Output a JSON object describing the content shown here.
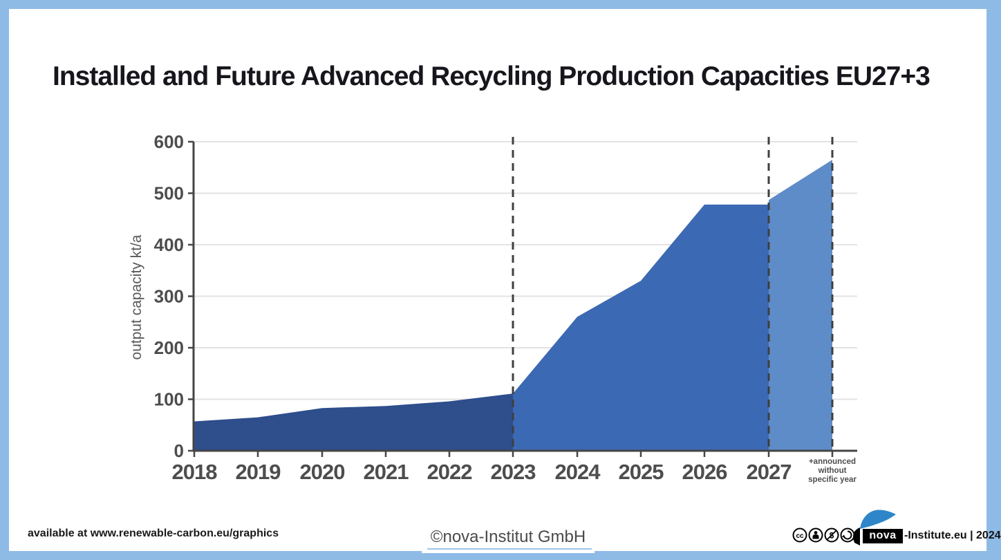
{
  "title": "Installed and Future Advanced Recycling Production Capacities EU27+3",
  "chart_data": {
    "type": "area",
    "title": "Installed and Future Advanced Recycling Production Capacities EU27+3",
    "xlabel": "",
    "ylabel": "output capacity kt/a",
    "ylim": [
      0,
      600
    ],
    "yticks": [
      0,
      100,
      200,
      300,
      400,
      500,
      600
    ],
    "grid": true,
    "legend": false,
    "categories": [
      "2018",
      "2019",
      "2020",
      "2021",
      "2022",
      "2023",
      "2024",
      "2025",
      "2026",
      "2027",
      "+announced without specific year"
    ],
    "last_category_lines": [
      "+announced",
      "without",
      "specific year"
    ],
    "series": [
      {
        "name": "installed-capacity-2018-2023",
        "color": "#2E4E8C",
        "x_indices": [
          0,
          1,
          2,
          3,
          4,
          5
        ],
        "values": [
          57,
          65,
          83,
          87,
          96,
          111
        ]
      },
      {
        "name": "future-capacity-2023-2027",
        "color": "#3C69B3",
        "x_indices": [
          5,
          6,
          7,
          8,
          9
        ],
        "values": [
          111,
          260,
          330,
          478,
          478
        ]
      },
      {
        "name": "announced-without-specific-year",
        "color": "#5E8CC8",
        "x_indices": [
          9,
          10
        ],
        "values": [
          487,
          565
        ]
      }
    ],
    "divider_line_indices": [
      5,
      9,
      10
    ],
    "colors": {
      "grid": "#E3E3E3",
      "axis": "#454545",
      "tick_text": "#4D4D4D",
      "divider": "#3F3F3F"
    }
  },
  "footer": {
    "availability_note": "available at www.renewable-carbon.eu/graphics",
    "watermark": "©nova-Institut GmbH",
    "license_icon_names": [
      "cc-icon",
      "cc-by-icon",
      "cc-nc-icon",
      "cc-sa-icon"
    ],
    "brand_nova": "nova",
    "brand_suffix": "-Institute.eu | 2024"
  },
  "frame_color": "#8EBBE6"
}
